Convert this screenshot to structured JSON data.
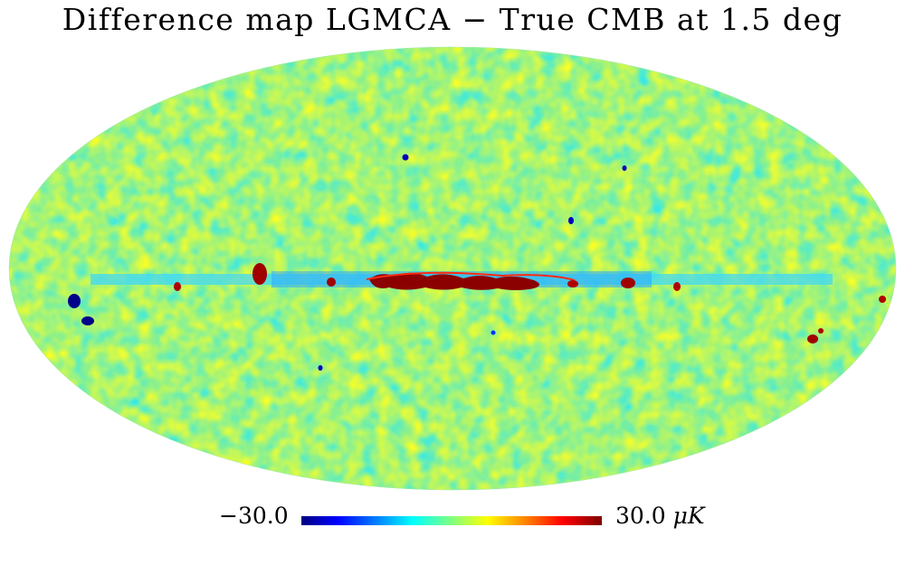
{
  "title": "Difference map LGMCA − True CMB at 1.5 deg",
  "colorbar": {
    "min_label": "−30.0",
    "max_label": "30.0",
    "unit": "μK",
    "min_value": -30.0,
    "max_value": 30.0,
    "colormap": "jet"
  },
  "colors": {
    "background": "#ffffff",
    "map_base": "#8cf08c",
    "galactic_band": "#8b0000",
    "point_source": "#0000a0"
  },
  "icons": {
    "map": "mollweide-sky-map-icon"
  }
}
